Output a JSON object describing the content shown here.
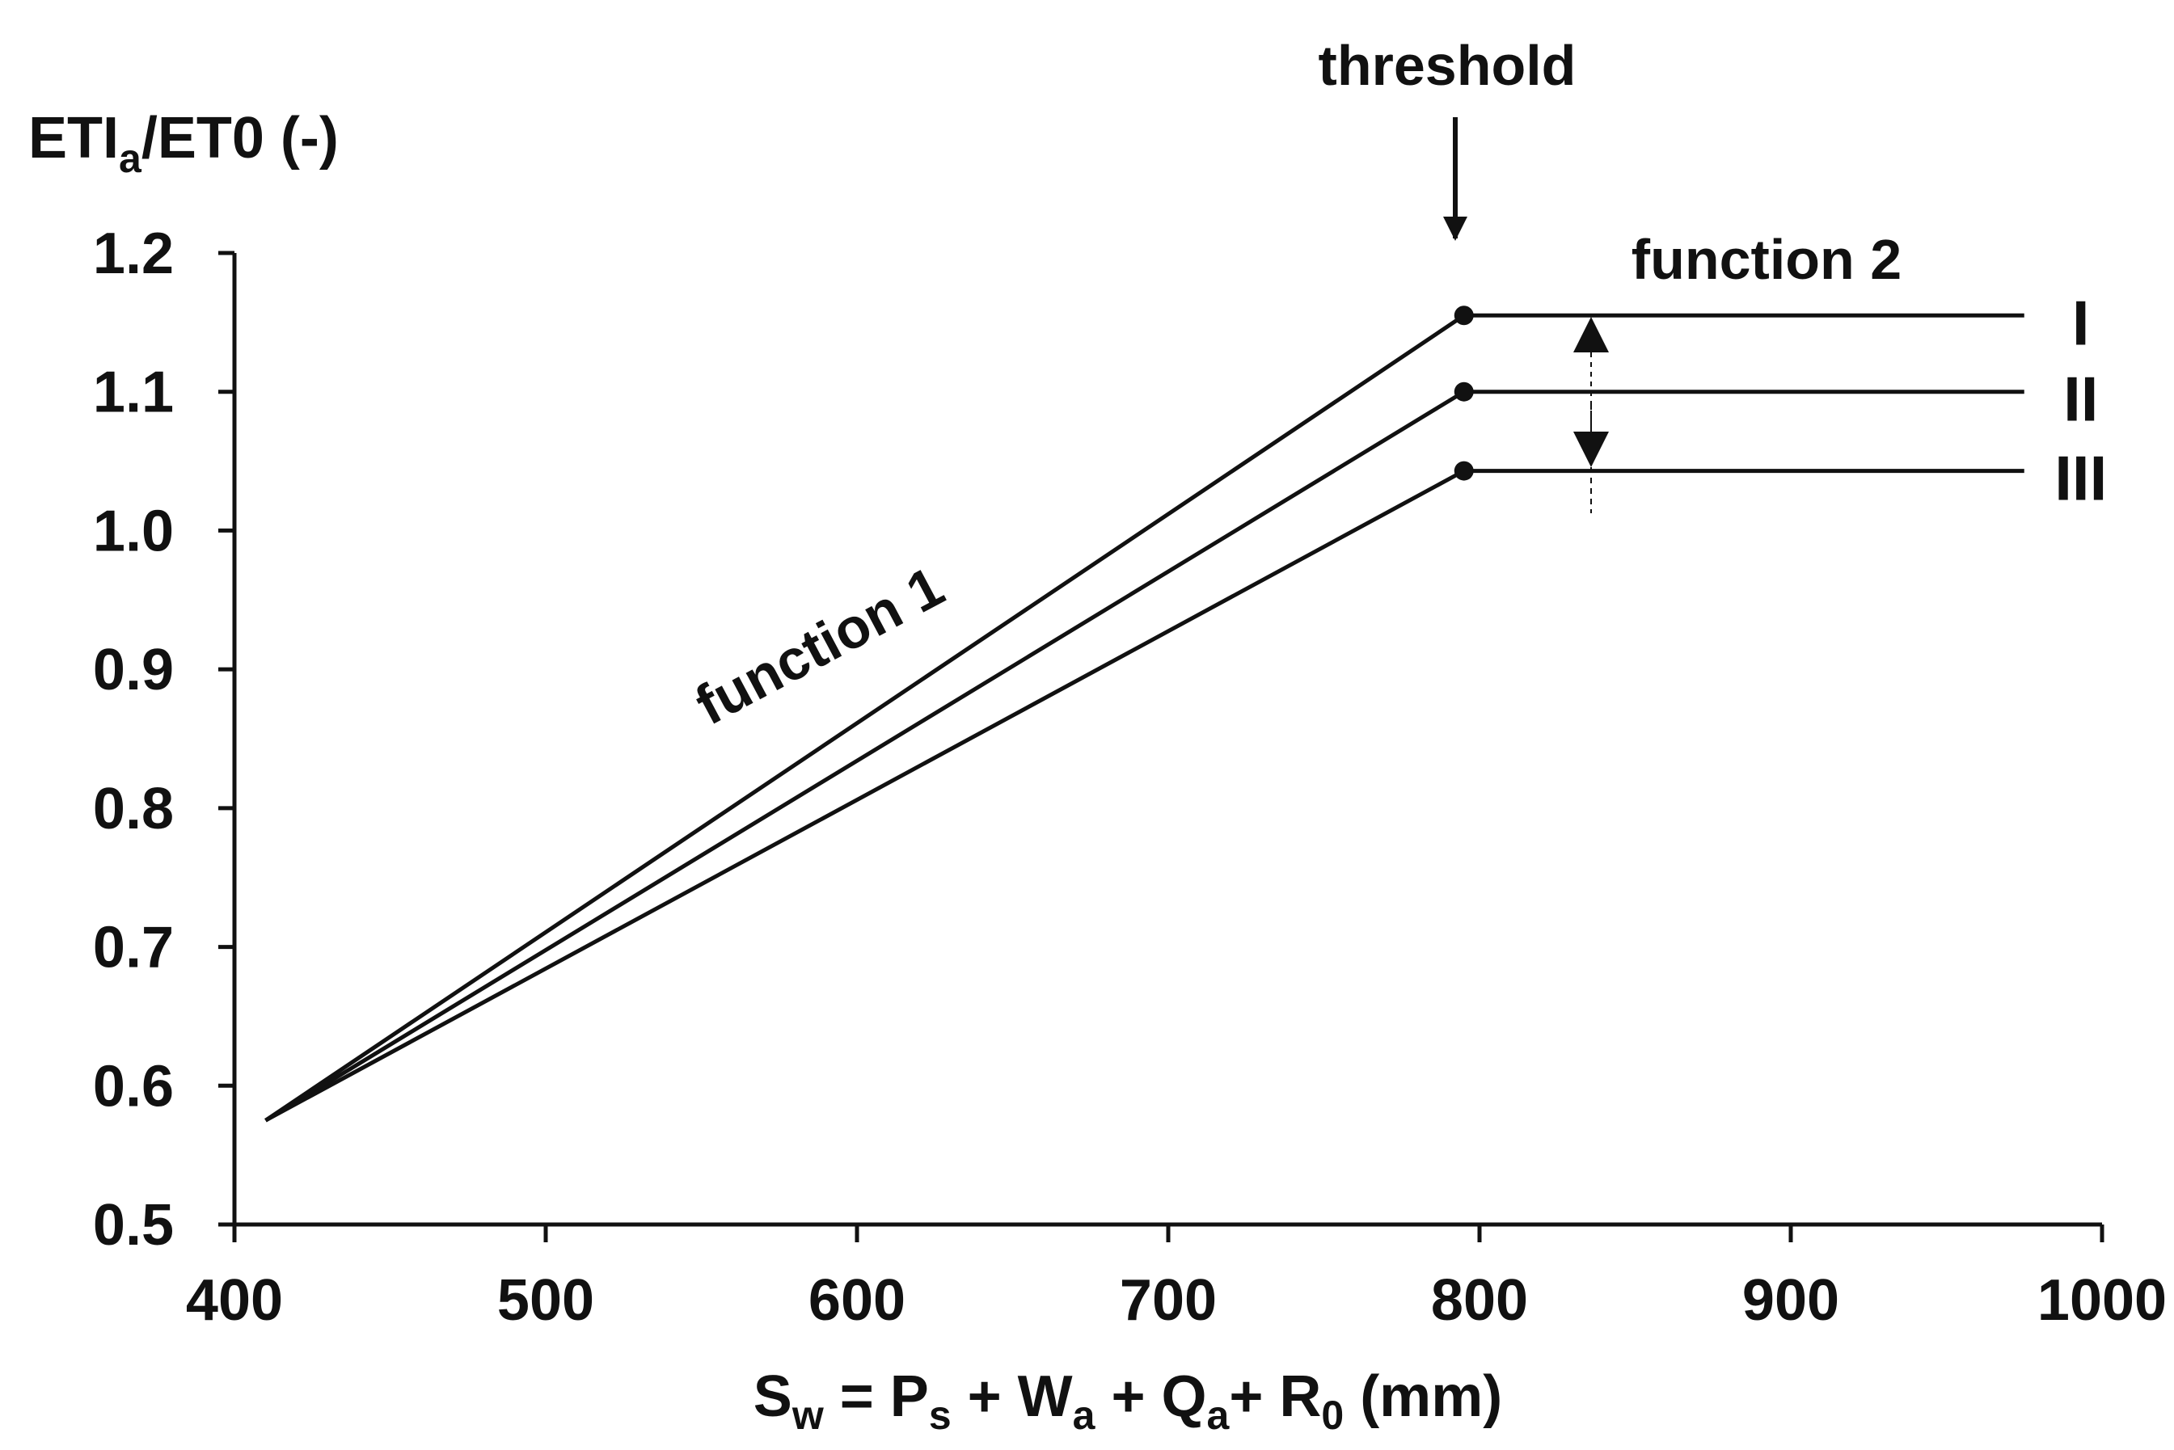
{
  "chart_data": {
    "type": "line",
    "title": "",
    "ylabel_main": "ETI",
    "ylabel_sub": "a",
    "ylabel_rest": "/ET0 (-)",
    "xlabel_parts": {
      "s": "S",
      "s_sub": "w",
      "eq_p": " = P",
      "p_sub": "s",
      "plus_w": " + W",
      "w_sub": "a",
      "plus_q": " + Q",
      "q_sub": "a",
      "plus_r": "+ R",
      "r_sub": "0",
      "unit": " (mm)"
    },
    "xlim": [
      400,
      1000
    ],
    "ylim": [
      0.5,
      1.2
    ],
    "x_ticks": [
      400,
      500,
      600,
      700,
      800,
      900,
      1000
    ],
    "x_tick_labels": [
      "400",
      "500",
      "600",
      "700",
      "800",
      "900",
      "1000"
    ],
    "y_ticks": [
      0.5,
      0.6,
      0.7,
      0.8,
      0.9,
      1.0,
      1.1,
      1.2
    ],
    "y_tick_labels": [
      "0.5",
      "0.6",
      "0.7",
      "0.8",
      "0.9",
      "1.0",
      "1.1",
      "1.2"
    ],
    "series": [
      {
        "name": "I",
        "x": [
          410,
          795,
          975
        ],
        "y": [
          0.575,
          1.155,
          1.155
        ]
      },
      {
        "name": "II",
        "x": [
          410,
          795,
          975
        ],
        "y": [
          0.575,
          1.1,
          1.1
        ]
      },
      {
        "name": "III",
        "x": [
          410,
          795,
          975
        ],
        "y": [
          0.575,
          1.043,
          1.043
        ]
      }
    ],
    "threshold_x": 795,
    "annotations": {
      "threshold": "threshold",
      "function1": "function 1",
      "function2": "function 2"
    }
  }
}
